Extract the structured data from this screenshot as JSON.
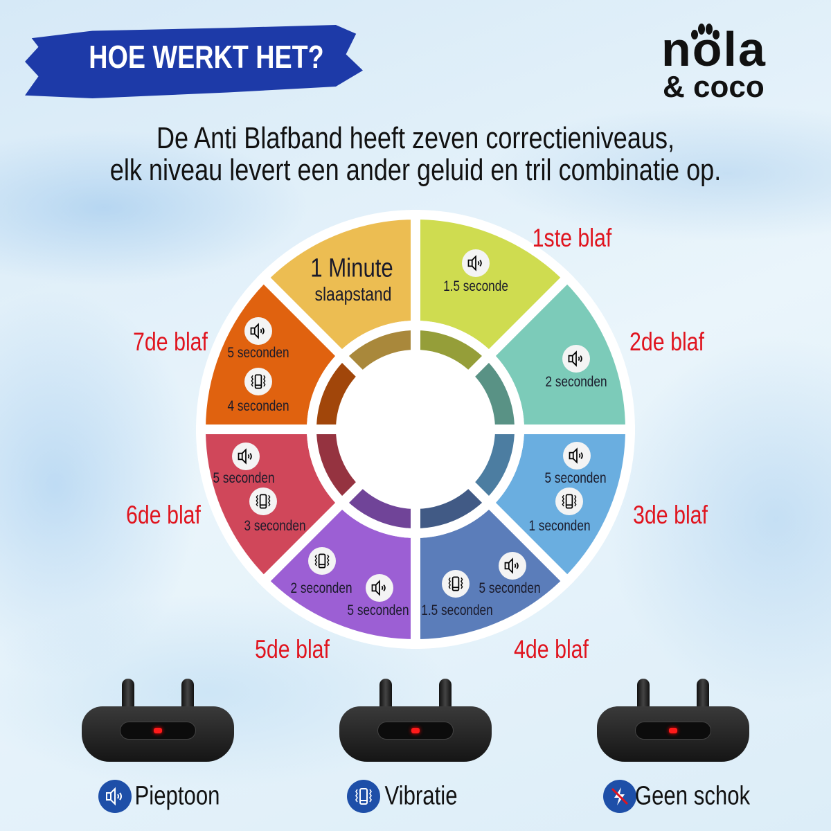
{
  "header": {
    "title": "HOE WERKT HET?",
    "subtitle_line1": "De Anti Blafband heeft zeven correctieniveaus,",
    "subtitle_line2": "elk niveau levert een ander geluid en tril combinatie op."
  },
  "logo": {
    "line1": "nola",
    "line2": "& coco"
  },
  "wheel": {
    "sleep": {
      "title": "1 Minute",
      "subtitle": "slaapstand",
      "color": "#ecbd52"
    },
    "levels": [
      {
        "label": "1ste blaf",
        "color": "#cfdc50",
        "texts": [
          "1.5 seconde"
        ],
        "icons": [
          "speaker-icon"
        ]
      },
      {
        "label": "2de blaf",
        "color": "#7ccbb9",
        "texts": [
          "2 seconden"
        ],
        "icons": [
          "speaker-icon"
        ]
      },
      {
        "label": "3de blaf",
        "color": "#6aaee0",
        "texts": [
          "5 seconden",
          "1 seconden"
        ],
        "icons": [
          "speaker-icon",
          "vibration-icon"
        ]
      },
      {
        "label": "4de blaf",
        "color": "#5b7dba",
        "texts": [
          "5 seconden",
          "1.5 seconden"
        ],
        "icons": [
          "speaker-icon",
          "vibration-icon"
        ]
      },
      {
        "label": "5de blaf",
        "color": "#9c5fd4",
        "texts": [
          "2 seconden",
          "5 seconden"
        ],
        "icons": [
          "vibration-icon",
          "speaker-icon"
        ]
      },
      {
        "label": "6de blaf",
        "color": "#d0475a",
        "texts": [
          "5 seconden",
          "3 seconden"
        ],
        "icons": [
          "speaker-icon",
          "vibration-icon"
        ]
      },
      {
        "label": "7de blaf",
        "color": "#e0620f",
        "texts": [
          "5 seconden",
          "4 seconden"
        ],
        "icons": [
          "speaker-icon",
          "vibration-icon"
        ]
      }
    ],
    "label_color": "#e0141e"
  },
  "legend": [
    {
      "label": "Pieptoon",
      "icon": "speaker-icon"
    },
    {
      "label": "Vibratie",
      "icon": "vibration-icon"
    },
    {
      "label": "Geen schok",
      "icon": "no-shock-icon"
    }
  ],
  "accent": "#1e4fa8"
}
